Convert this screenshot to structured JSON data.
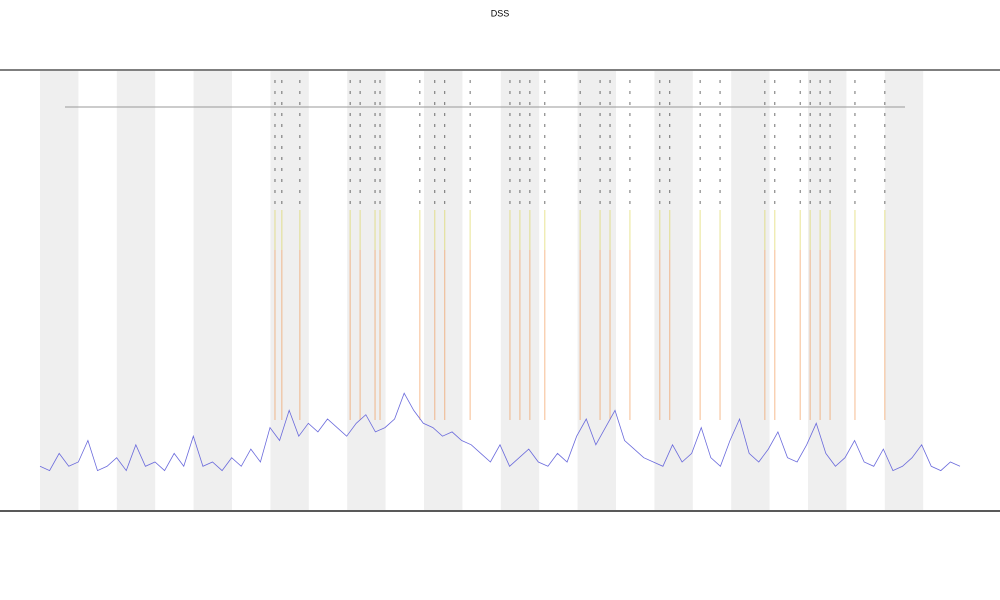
{
  "chart_data": {
    "type": "line",
    "title": "DSS",
    "x": [
      0,
      2.5,
      5,
      7.5,
      10,
      12.5,
      15,
      17.5,
      20,
      22.5,
      25,
      27.5,
      30,
      32.5,
      35,
      37.5,
      40,
      42.5,
      45,
      47.5,
      50,
      52.5,
      55,
      57.5,
      60,
      62.5,
      65,
      67.5,
      70,
      72.5,
      75,
      77.5,
      80,
      82.5,
      85,
      87.5,
      90,
      92.5,
      95,
      97.5,
      100,
      102.5,
      105,
      107.5,
      110,
      112.5,
      115,
      117.5,
      120,
      122.5,
      125,
      127.5,
      130,
      132.5,
      135,
      137.5,
      140,
      142.5,
      145,
      147.5,
      150,
      152.5,
      155,
      157.5,
      160,
      162.5,
      165,
      167.5,
      170,
      172.5,
      175,
      177.5,
      180,
      182.5,
      185,
      187.5,
      190,
      192.5,
      195,
      197.5,
      200,
      202.5,
      205,
      207.5,
      210,
      212.5,
      215,
      217.5,
      220,
      222.5,
      225,
      227.5,
      230,
      232.5,
      235,
      237.5,
      240
    ],
    "series": [
      {
        "color": "#6b6bdc",
        "values": [
          9,
          8,
          12,
          9,
          10,
          15,
          8,
          9,
          11,
          8,
          14,
          9,
          10,
          8,
          12,
          9,
          16,
          9,
          10,
          8,
          11,
          9,
          13,
          10,
          18,
          15,
          22,
          16,
          19,
          17,
          20,
          18,
          16,
          19,
          21,
          17,
          18,
          20,
          26,
          22,
          19,
          18,
          16,
          17,
          15,
          14,
          12,
          10,
          14,
          9,
          11,
          13,
          10,
          9,
          12,
          10,
          16,
          20,
          14,
          18,
          22,
          15,
          13,
          11,
          10,
          9,
          14,
          10,
          12,
          18,
          11,
          9,
          15,
          20,
          12,
          10,
          13,
          17,
          11,
          10,
          14,
          19,
          12,
          9,
          11,
          15,
          10,
          9,
          13,
          8,
          9,
          11,
          14,
          9,
          8,
          10,
          9
        ]
      }
    ],
    "events": {
      "color": "#f08a3c",
      "x": [
        61.3,
        63.1,
        67.8,
        80.9,
        83.5,
        87.4,
        88.7,
        99.1,
        103,
        105.6,
        112.2,
        122.6,
        125.2,
        127.8,
        131.7,
        140.9,
        146.1,
        148.7,
        153.9,
        161.7,
        164.3,
        172.2,
        177.4,
        189.1,
        191.7,
        198.3,
        200.9,
        203.5,
        206.1,
        212.6,
        220.4
      ]
    },
    "xlim": [
      0,
      240
    ],
    "ylim": [
      0,
      100
    ]
  }
}
